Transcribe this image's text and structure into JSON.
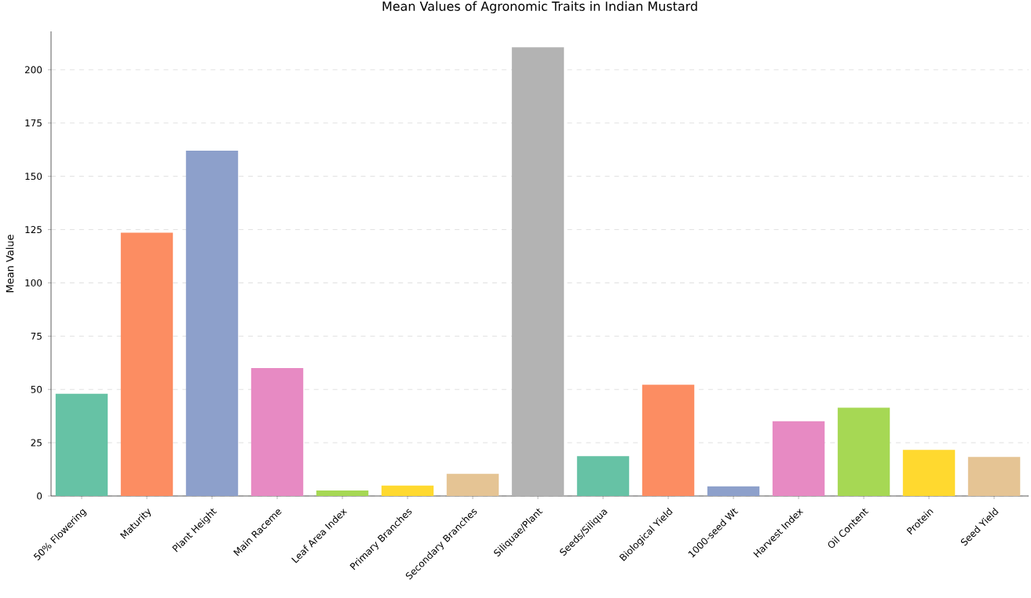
{
  "chart_data": {
    "type": "bar",
    "title": "Mean Values of Agronomic Traits in Indian Mustard",
    "ylabel": "Mean Value",
    "categories": [
      "50% Flowering",
      "Maturity",
      "Plant Height",
      "Main Raceme",
      "Leaf Area Index",
      "Primary Branches",
      "Secondary Branches",
      "Siliquae/Plant",
      "Seeds/Siliqua",
      "Biological Yield",
      "1000-seed Wt",
      "Harvest Index",
      "Oil Content",
      "Protein",
      "Seed Yield"
    ],
    "values": [
      48,
      123.5,
      162,
      60,
      2.6,
      4.9,
      10.4,
      210.5,
      18.7,
      52.2,
      4.5,
      35.1,
      41.4,
      21.6,
      18.3
    ],
    "colors": [
      "#66c2a5",
      "#fc8d62",
      "#8da0cb",
      "#e78ac3",
      "#a6d854",
      "#ffd92f",
      "#e5c494",
      "#b3b3b3",
      "#66c2a5",
      "#fc8d62",
      "#8da0cb",
      "#e78ac3",
      "#a6d854",
      "#ffd92f",
      "#e5c494"
    ],
    "ylim": [
      0,
      218
    ],
    "yticks": [
      0,
      25,
      50,
      75,
      100,
      125,
      150,
      175,
      200
    ],
    "grid": "y"
  }
}
